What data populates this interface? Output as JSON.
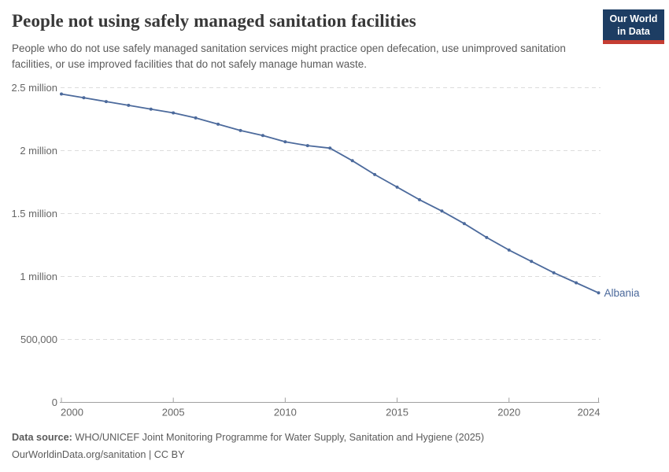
{
  "header": {
    "title": "People not using safely managed sanitation facilities",
    "subtitle": "People who do not use safely managed sanitation services might practice open defecation, use unimproved sanitation facilities, or use improved facilities that do not safely manage human waste.",
    "logo": {
      "line1": "Our World",
      "line2": "in Data"
    }
  },
  "chart_data": {
    "type": "line",
    "title": "People not using safely managed sanitation facilities",
    "xlabel": "",
    "ylabel": "",
    "xlim": [
      2000,
      2024
    ],
    "ylim": [
      0,
      2500000
    ],
    "grid": true,
    "legend_position": "end-of-line-label",
    "x": [
      2000,
      2001,
      2002,
      2003,
      2004,
      2005,
      2006,
      2007,
      2008,
      2009,
      2010,
      2011,
      2012,
      2013,
      2014,
      2015,
      2016,
      2017,
      2018,
      2019,
      2020,
      2021,
      2022,
      2023,
      2024
    ],
    "series": [
      {
        "name": "Albania",
        "values": [
          2450000,
          2420000,
          2390000,
          2360000,
          2330000,
          2300000,
          2260000,
          2210000,
          2160000,
          2120000,
          2070000,
          2040000,
          2020000,
          1920000,
          1810000,
          1710000,
          1610000,
          1520000,
          1420000,
          1310000,
          1210000,
          1120000,
          1030000,
          950000,
          870000
        ]
      }
    ],
    "entity_label": "Albania",
    "y_ticks": [
      {
        "value": 0,
        "label": "0"
      },
      {
        "value": 500000,
        "label": "500,000"
      },
      {
        "value": 1000000,
        "label": "1 million"
      },
      {
        "value": 1500000,
        "label": "1.5 million"
      },
      {
        "value": 2000000,
        "label": "2 million"
      },
      {
        "value": 2500000,
        "label": "2.5 million"
      }
    ],
    "x_ticks": [
      2000,
      2005,
      2010,
      2015,
      2020,
      2024
    ],
    "colors": {
      "line": "#4c6a9c",
      "grid": "#dcdcdc",
      "axis": "#a0a0a0",
      "tick_label": "#666666",
      "title": "#383838",
      "subtitle": "#5b5b5b",
      "logo_bg": "#1d3d63",
      "logo_bar": "#c53d33"
    }
  },
  "footer": {
    "source_label": "Data source:",
    "source_text": "WHO/UNICEF Joint Monitoring Programme for Water Supply, Sanitation and Hygiene (2025)",
    "license_text": "OurWorldinData.org/sanitation | CC BY"
  }
}
